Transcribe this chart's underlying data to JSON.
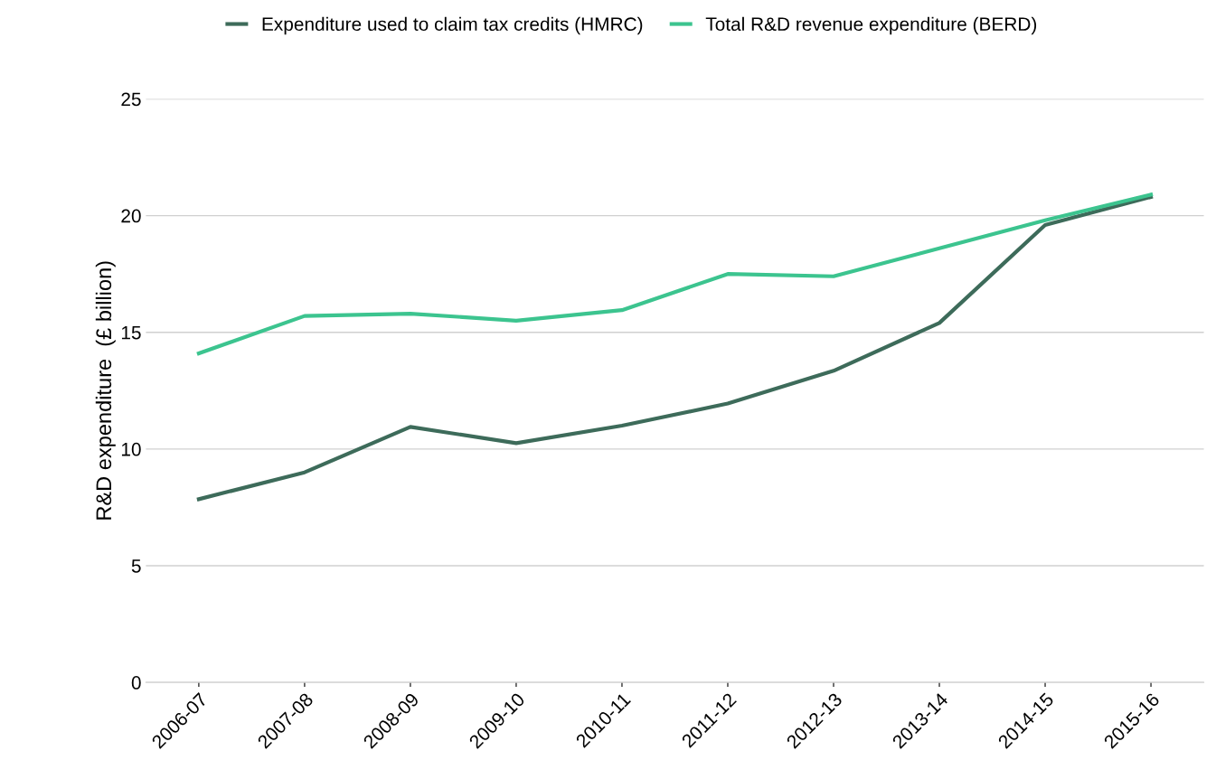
{
  "chart_data": {
    "type": "line",
    "ylabel": "R&D expenditure  (£ billion)",
    "categories": [
      "2006-07",
      "2007-08",
      "2008-09",
      "2009-10",
      "2010-11",
      "2011-12",
      "2012-13",
      "2013-14",
      "2014-15",
      "2015-16"
    ],
    "series": [
      {
        "name": "Expenditure used to claim tax credits (HMRC)",
        "color": "#3d6b5a",
        "values": [
          7.85,
          9.0,
          10.95,
          10.25,
          11.0,
          11.95,
          13.35,
          15.4,
          19.6,
          20.8
        ]
      },
      {
        "name": "Total R&D revenue expenditure (BERD)",
        "color": "#3cc48f",
        "values": [
          14.1,
          15.7,
          15.8,
          15.5,
          15.95,
          17.5,
          17.4,
          18.6,
          19.8,
          20.9
        ]
      }
    ],
    "ylim": [
      0,
      25
    ],
    "yticks": [
      0,
      5,
      10,
      15,
      20,
      25
    ],
    "grid": "y",
    "legend": "top",
    "marker": "none",
    "line_style": "solid"
  }
}
